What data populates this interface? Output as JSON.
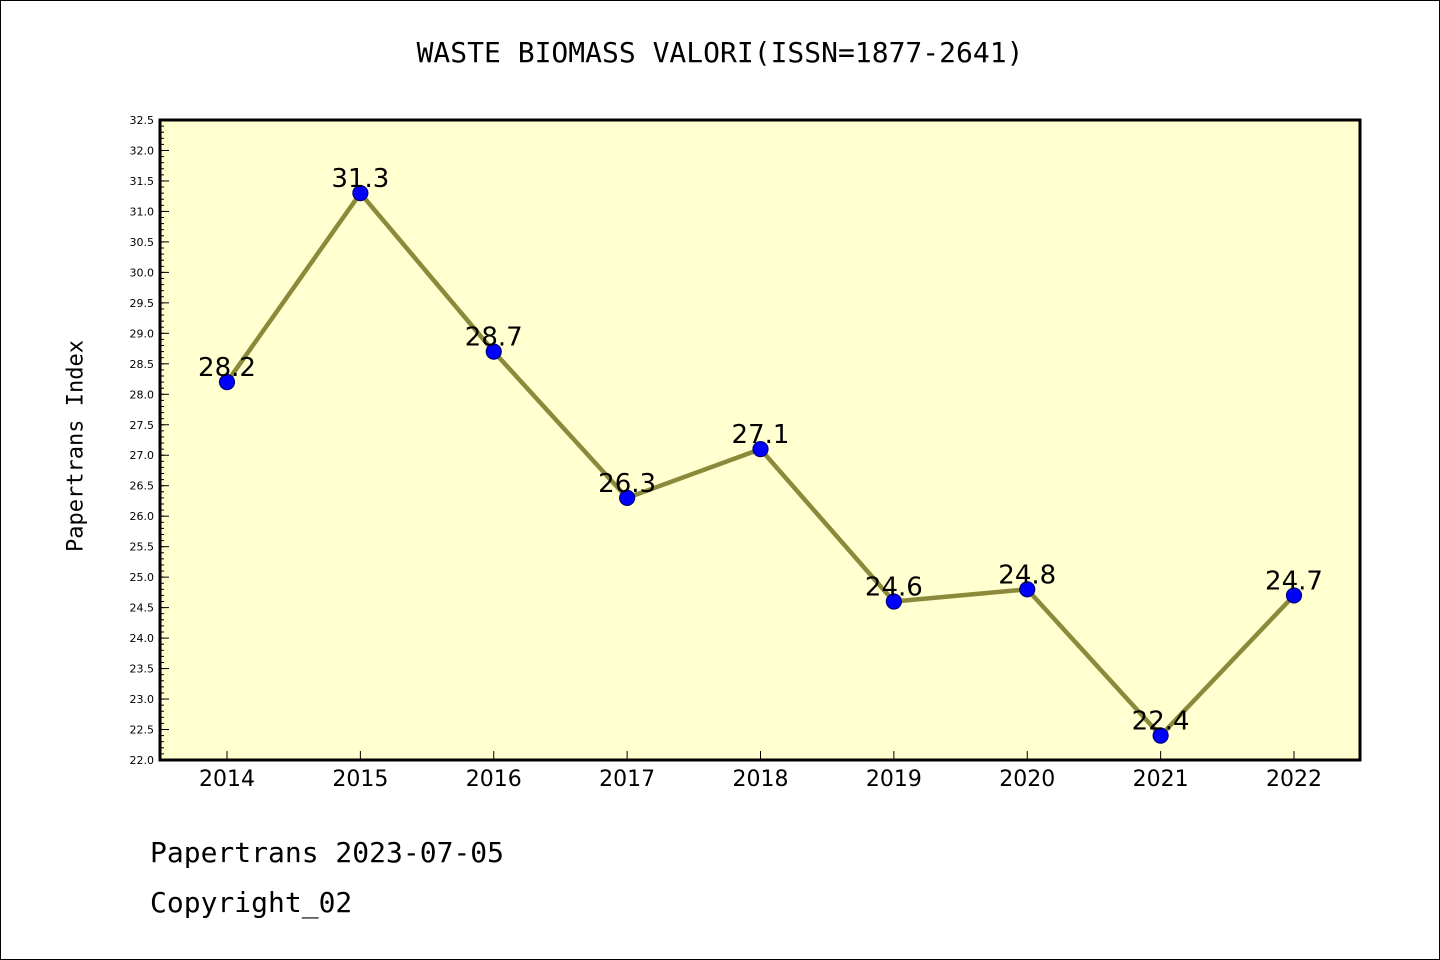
{
  "chart_data": {
    "type": "line",
    "title": "WASTE BIOMASS VALORI(ISSN=1877-2641)",
    "xlabel": "",
    "ylabel": "Papertrans Index",
    "categories": [
      "2014",
      "2015",
      "2016",
      "2017",
      "2018",
      "2019",
      "2020",
      "2021",
      "2022"
    ],
    "values": [
      28.2,
      31.3,
      28.7,
      26.3,
      27.1,
      24.6,
      24.8,
      22.4,
      24.7
    ],
    "data_labels": [
      "28.2",
      "31.3",
      "28.7",
      "26.3",
      "27.1",
      "24.6",
      "24.8",
      "22.4",
      "24.7"
    ],
    "ylim": [
      22.0,
      32.5
    ],
    "y_ticks": [
      "22.0",
      "22.5",
      "23.0",
      "23.5",
      "24.0",
      "24.5",
      "25.0",
      "25.5",
      "26.0",
      "26.5",
      "27.0",
      "27.5",
      "28.0",
      "28.5",
      "29.0",
      "29.5",
      "30.0",
      "30.5",
      "31.0",
      "31.5",
      "32.0",
      "32.5"
    ],
    "grid": false,
    "legend": "none",
    "colors": {
      "plot_background": "#ffffd0",
      "line": "#8b8a3a",
      "marker": "#0000ff",
      "marker_edge": "#000080"
    }
  },
  "footer": {
    "date_line": "Papertrans 2023-07-05",
    "copyright_line": "Copyright_02"
  }
}
